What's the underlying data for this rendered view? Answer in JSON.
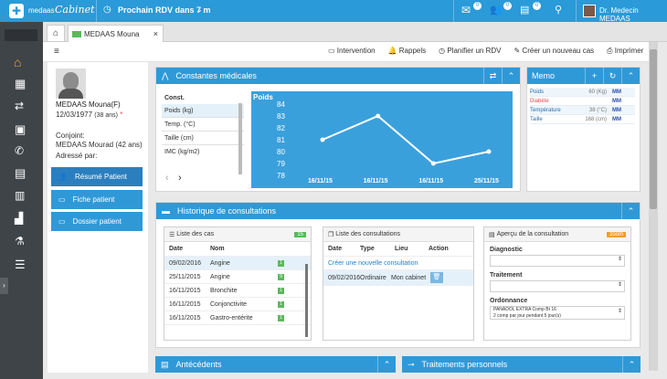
{
  "app": {
    "brand": "medaas",
    "brand_script": "Cabinet",
    "next_rdv": "Prochain RDV dans 7 m",
    "doctor": "Dr. Medecin MEDAAS",
    "badges": {
      "mail": "0",
      "users": "0",
      "docs": "0"
    }
  },
  "tab": {
    "label": "MEDAAS Mouna",
    "close": "×"
  },
  "toolbar": {
    "intervention": "Intervention",
    "rappels": "Rappels",
    "planifier": "Planifier un RDV",
    "creer": "Créer un nouveau cas",
    "imprimer": "Imprimer"
  },
  "patient": {
    "name": "MEDAAS Mouna(F)",
    "dob": "12/03/1977",
    "age": "(38 ans)",
    "star": "*",
    "spouse_label": "Conjoint:",
    "spouse": "MEDAAS Mourad (42 ans)",
    "referred_label": "Adressé par:",
    "buttons": [
      "Résumé Patient",
      "Fiche patient",
      "Dossier patient"
    ]
  },
  "constantes": {
    "title": "Constantes médicales",
    "list_header": "Const.",
    "items": [
      "Poids (kg)",
      "Temp. (°C)",
      "Taille (cm)",
      "IMC (kg/m2)"
    ]
  },
  "chart_data": {
    "type": "line",
    "title": "Poids",
    "categories": [
      "16/11/15",
      "16/11/15",
      "16/11/15",
      "25/11/15"
    ],
    "values": [
      81,
      83,
      79,
      80
    ],
    "ylim": [
      79,
      84
    ],
    "yticks": [
      84,
      83,
      82,
      81,
      80,
      79,
      78
    ]
  },
  "memo": {
    "title": "Memo",
    "rows": [
      {
        "label": "Poids",
        "value": "60 (Kg)",
        "tag": "MM",
        "color": "#2a6fb0"
      },
      {
        "label": "Diabète",
        "value": "",
        "tag": "MM",
        "color": "#d9534f"
      },
      {
        "label": "Température",
        "value": "38 (°C)",
        "tag": "MM",
        "color": "#2a6fb0"
      },
      {
        "label": "Taille",
        "value": "168 (cm)",
        "tag": "MM",
        "color": "#2a6fb0"
      }
    ]
  },
  "historique": {
    "title": "Historique de consultations"
  },
  "cas": {
    "title": "Liste des cas",
    "count": "15",
    "col_date": "Date",
    "col_nom": "Nom",
    "rows": [
      {
        "date": "09/02/2016",
        "nom": "Angine",
        "n": "1"
      },
      {
        "date": "25/11/2015",
        "nom": "Angine",
        "n": "9"
      },
      {
        "date": "16/11/2015",
        "nom": "Bronchite",
        "n": "1"
      },
      {
        "date": "16/11/2015",
        "nom": "Conjonctivite",
        "n": "1"
      },
      {
        "date": "16/11/2015",
        "nom": "Gastro-entérite",
        "n": "1"
      }
    ]
  },
  "consultations": {
    "title": "Liste des consultations",
    "col_date": "Date",
    "col_type": "Type",
    "col_lieu": "Lieu",
    "col_action": "Action",
    "create": "Créer une nouvelle consultation",
    "row": {
      "date": "09/02/2016",
      "type": "Ordinaire",
      "lieu": "Mon cabinet"
    }
  },
  "apercu": {
    "title": "Aperçu de la consultation",
    "zoom": "zoom",
    "diagnostic": "Diagnostic",
    "traitement": "Traitement",
    "ordonnance": "Ordonnance",
    "ord_text": "PANADOL EXTRA Comp Bt 16",
    "ord_sub": "2 comp par jour pendant 5 jour(s)"
  },
  "bottom": {
    "antecedents": "Antécédents",
    "traitements": "Traitements personnels"
  }
}
